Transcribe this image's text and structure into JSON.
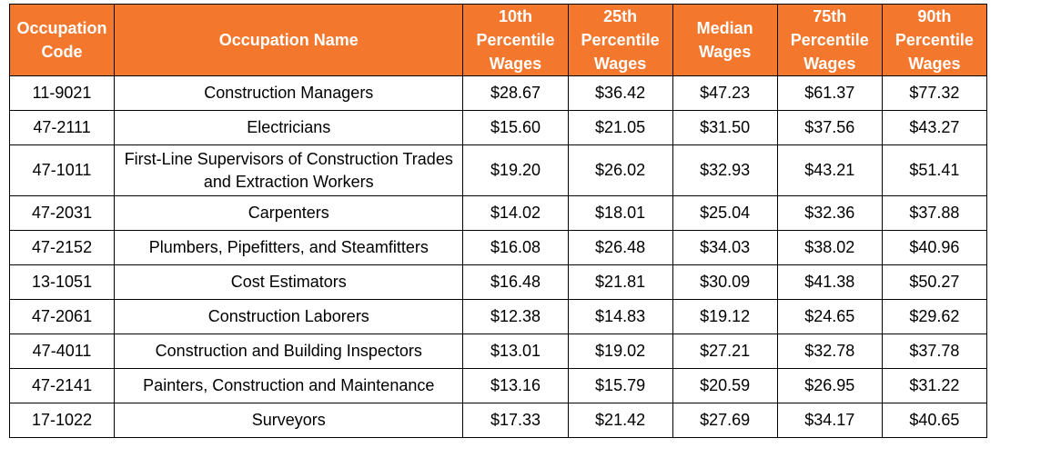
{
  "table": {
    "headers": [
      "Occupation Code",
      "Occupation Name",
      "10th Percentile Wages",
      "25th Percentile Wages",
      "Median Wages",
      "75th Percentile Wages",
      "90th Percentile Wages"
    ],
    "rows": [
      [
        "11-9021",
        "Construction Managers",
        "$28.67",
        "$36.42",
        "$47.23",
        "$61.37",
        "$77.32"
      ],
      [
        "47-2111",
        "Electricians",
        "$15.60",
        "$21.05",
        "$31.50",
        "$37.56",
        "$43.27"
      ],
      [
        "47-1011",
        "First-Line Supervisors of Construction Trades and Extraction Workers",
        "$19.20",
        "$26.02",
        "$32.93",
        "$43.21",
        "$51.41"
      ],
      [
        "47-2031",
        "Carpenters",
        "$14.02",
        "$18.01",
        "$25.04",
        "$32.36",
        "$37.88"
      ],
      [
        "47-2152",
        "Plumbers, Pipefitters, and Steamfitters",
        "$16.08",
        "$26.48",
        "$34.03",
        "$38.02",
        "$40.96"
      ],
      [
        "13-1051",
        "Cost Estimators",
        "$16.48",
        "$21.81",
        "$30.09",
        "$41.38",
        "$50.27"
      ],
      [
        "47-2061",
        "Construction Laborers",
        "$12.38",
        "$14.83",
        "$19.12",
        "$24.65",
        "$29.62"
      ],
      [
        "47-4011",
        "Construction and Building Inspectors",
        "$13.01",
        "$19.02",
        "$27.21",
        "$32.78",
        "$37.78"
      ],
      [
        "47-2141",
        "Painters, Construction and Maintenance",
        "$13.16",
        "$15.79",
        "$20.59",
        "$26.95",
        "$31.22"
      ],
      [
        "17-1022",
        "Surveyors",
        "$17.33",
        "$21.42",
        "$27.69",
        "$34.17",
        "$40.65"
      ]
    ]
  },
  "colors": {
    "header_bg": "#f4772e",
    "header_text": "#ffffff",
    "border": "#000000"
  }
}
